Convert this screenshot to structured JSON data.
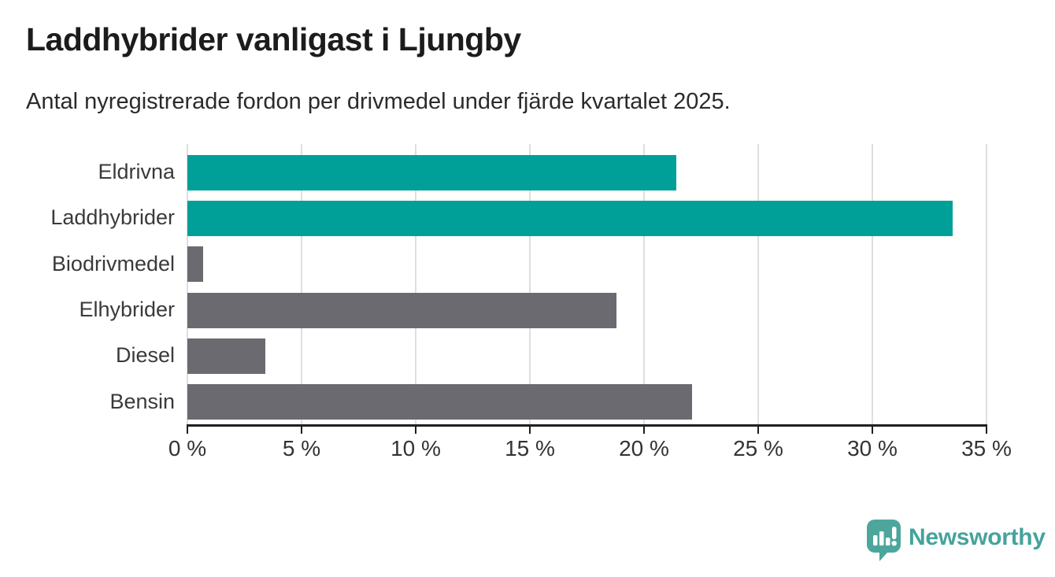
{
  "header": {
    "title": "Laddhybrider vanligast i Ljungby",
    "subtitle": "Antal nyregistrerade fordon per drivmedel under fjärde kvartalet 2025."
  },
  "colors": {
    "highlight": "#00a099",
    "default": "#6b6a70",
    "axis": "#1f1f1f",
    "gridline": "#dfdfdf",
    "brand": "#46a39c"
  },
  "chart_data": {
    "type": "bar",
    "orientation": "horizontal",
    "title": "Laddhybrider vanligast i Ljungby",
    "subtitle": "Antal nyregistrerade fordon per drivmedel under fjärde kvartalet 2025.",
    "categories": [
      "Eldrivna",
      "Laddhybrider",
      "Biodrivmedel",
      "Elhybrider",
      "Diesel",
      "Bensin"
    ],
    "values": [
      21.4,
      33.5,
      0.7,
      18.8,
      3.4,
      22.1
    ],
    "unit": "%",
    "bar_color_keys": [
      "highlight",
      "highlight",
      "default",
      "default",
      "default",
      "default"
    ],
    "xlim": [
      0,
      35
    ],
    "xticks": [
      0,
      5,
      10,
      15,
      20,
      25,
      30,
      35
    ],
    "xtick_suffix": " %",
    "grid": true,
    "legend": "none",
    "ylabel": "",
    "xlabel": ""
  },
  "branding": {
    "name": "Newsworthy",
    "logo_icon": "speech-bubble-bar-chart-icon"
  }
}
